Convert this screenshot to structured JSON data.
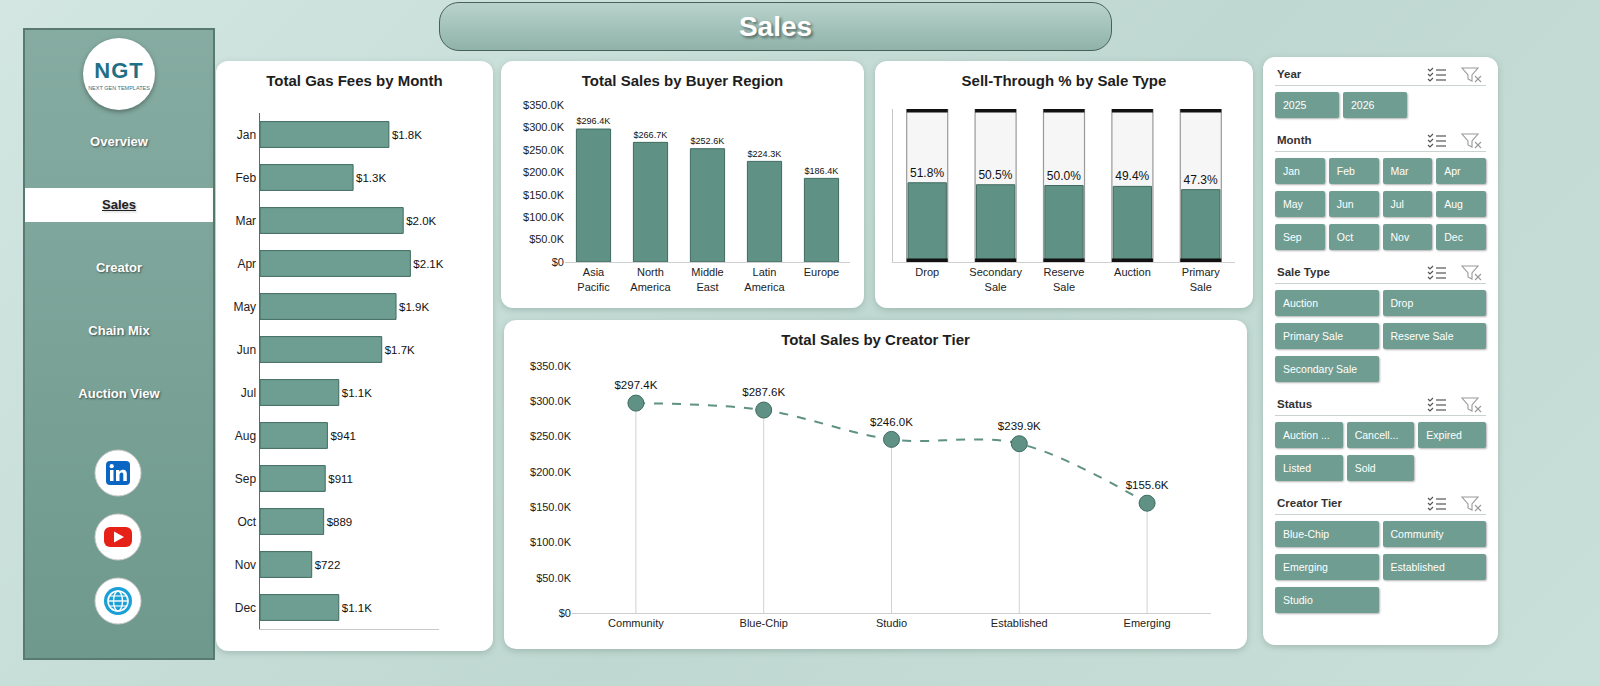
{
  "header": {
    "title": "Sales"
  },
  "nav": {
    "logo": "NGT",
    "logo_subtitle": "NEXT GEN TEMPLATES",
    "items": [
      "Overview",
      "Sales",
      "Creator",
      "Chain Mix",
      "Auction View"
    ],
    "active": "Sales"
  },
  "filters": [
    {
      "title": "Year",
      "options": [
        "2025",
        "2026"
      ]
    },
    {
      "title": "Month",
      "options": [
        "Jan",
        "Feb",
        "Mar",
        "Apr",
        "May",
        "Jun",
        "Jul",
        "Aug",
        "Sep",
        "Oct",
        "Nov",
        "Dec"
      ]
    },
    {
      "title": "Sale Type",
      "options": [
        "Auction",
        "Drop",
        "Primary Sale",
        "Reserve Sale",
        "Secondary Sale"
      ]
    },
    {
      "title": "Status",
      "options": [
        "Auction ...",
        "Cancell...",
        "Expired",
        "Listed",
        "Sold"
      ]
    },
    {
      "title": "Creator Tier",
      "options": [
        "Blue-Chip",
        "Community",
        "Emerging",
        "Established",
        "Studio"
      ]
    }
  ],
  "chart_data": [
    {
      "type": "bar",
      "title": "Total Gas Fees by Month",
      "orientation": "horizontal",
      "categories": [
        "Jan",
        "Feb",
        "Mar",
        "Apr",
        "May",
        "Jun",
        "Jul",
        "Aug",
        "Sep",
        "Oct",
        "Nov",
        "Dec"
      ],
      "values": [
        1800,
        1300,
        2000,
        2100,
        1900,
        1700,
        1100,
        941,
        911,
        889,
        722,
        1100
      ],
      "value_labels": [
        "$1.8K",
        "$1.3K",
        "$2.0K",
        "$2.1K",
        "$1.9K",
        "$1.7K",
        "$1.1K",
        "$941",
        "$911",
        "$889",
        "$722",
        "$1.1K"
      ],
      "data_labels": true,
      "color": "#6d9e91",
      "xlim": [
        0,
        2500
      ],
      "grid": false,
      "tick_labels": "y"
    },
    {
      "type": "bar",
      "title": "Total Sales by Buyer Region",
      "categories": [
        "Asia Pacific",
        "North America",
        "Middle East",
        "Latin America",
        "Europe"
      ],
      "values": [
        296400,
        266700,
        252600,
        224300,
        186400
      ],
      "value_labels": [
        "$296.4K",
        "$266.7K",
        "$252.6K",
        "$224.3K",
        "$186.4K"
      ],
      "data_labels": true,
      "color": "#5f9184",
      "ylim": [
        0,
        350000
      ],
      "yticks": [
        {
          "value": 0,
          "label": "$0"
        },
        {
          "value": 50000,
          "label": "$50.0K"
        },
        {
          "value": 100000,
          "label": "$100.0K"
        },
        {
          "value": 150000,
          "label": "$150.0K"
        },
        {
          "value": 200000,
          "label": "$200.0K"
        },
        {
          "value": 250000,
          "label": "$250.0K"
        },
        {
          "value": 300000,
          "label": "$300.0K"
        },
        {
          "value": 350000,
          "label": "$350.0K"
        }
      ],
      "grid": false
    },
    {
      "type": "bar",
      "title": "Sell-Through % by Sale Type",
      "categories": [
        "Drop",
        "Secondary Sale",
        "Reserve Sale",
        "Auction",
        "Primary Sale"
      ],
      "values": [
        51.8,
        50.5,
        50,
        49.4,
        47.3
      ],
      "value_labels": [
        "51.8%",
        "50.5%",
        "50.0%",
        "49.4%",
        "47.3%"
      ],
      "data_labels": true,
      "color": "#5f9184",
      "ylim": [
        0,
        100
      ],
      "grid": false,
      "tick_labels": "x"
    },
    {
      "type": "line",
      "title": "Total Sales by Creator Tier",
      "categories": [
        "Community",
        "Blue-Chip",
        "Studio",
        "Established",
        "Emerging"
      ],
      "values": [
        297400,
        287600,
        246000,
        239900,
        155600
      ],
      "value_labels": [
        "$297.4K",
        "$287.6K",
        "$246.0K",
        "$239.9K",
        "$155.6K"
      ],
      "data_labels": true,
      "color": "#5f9184",
      "marker": "circle",
      "line_style": "dashed",
      "ylim": [
        0,
        350000
      ],
      "yticks": [
        {
          "value": 0,
          "label": "$0"
        },
        {
          "value": 50000,
          "label": "$50.0K"
        },
        {
          "value": 100000,
          "label": "$100.0K"
        },
        {
          "value": 150000,
          "label": "$150.0K"
        },
        {
          "value": 200000,
          "label": "$200.0K"
        },
        {
          "value": 250000,
          "label": "$250.0K"
        },
        {
          "value": 300000,
          "label": "$300.0K"
        },
        {
          "value": 350000,
          "label": "$350.0K"
        }
      ],
      "grid": false
    }
  ]
}
